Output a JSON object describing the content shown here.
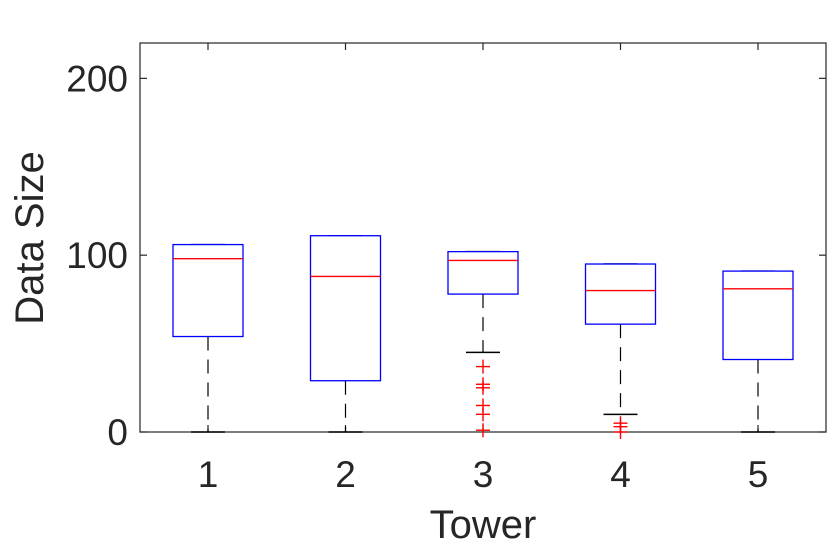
{
  "chart_data": {
    "type": "box",
    "title": "",
    "xlabel": "Tower",
    "ylabel": "Data Size",
    "ylim": [
      0,
      220
    ],
    "yticks": [
      0,
      100,
      200
    ],
    "categories": [
      "1",
      "2",
      "3",
      "4",
      "5"
    ],
    "grid": false,
    "colors": {
      "box": "#0000ff",
      "median": "#ff0000",
      "whisker": "#000000",
      "outlier": "#ff0000",
      "axis": "#262626"
    },
    "boxes": [
      {
        "category": "1",
        "lower_whisker": 0,
        "q1": 54,
        "median": 98,
        "q3": 106,
        "upper_whisker": 106,
        "outliers": []
      },
      {
        "category": "2",
        "lower_whisker": 0,
        "q1": 29,
        "median": 88,
        "q3": 111,
        "upper_whisker": 111,
        "outliers": []
      },
      {
        "category": "3",
        "lower_whisker": 45,
        "q1": 78,
        "median": 97,
        "q3": 102,
        "upper_whisker": 102,
        "outliers": [
          37,
          27,
          25,
          15,
          10,
          1
        ]
      },
      {
        "category": "4",
        "lower_whisker": 10,
        "q1": 61,
        "median": 80,
        "q3": 95,
        "upper_whisker": 95,
        "outliers": [
          5,
          3,
          0
        ]
      },
      {
        "category": "5",
        "lower_whisker": 0,
        "q1": 41,
        "median": 81,
        "q3": 91,
        "upper_whisker": 91,
        "outliers": []
      }
    ]
  }
}
